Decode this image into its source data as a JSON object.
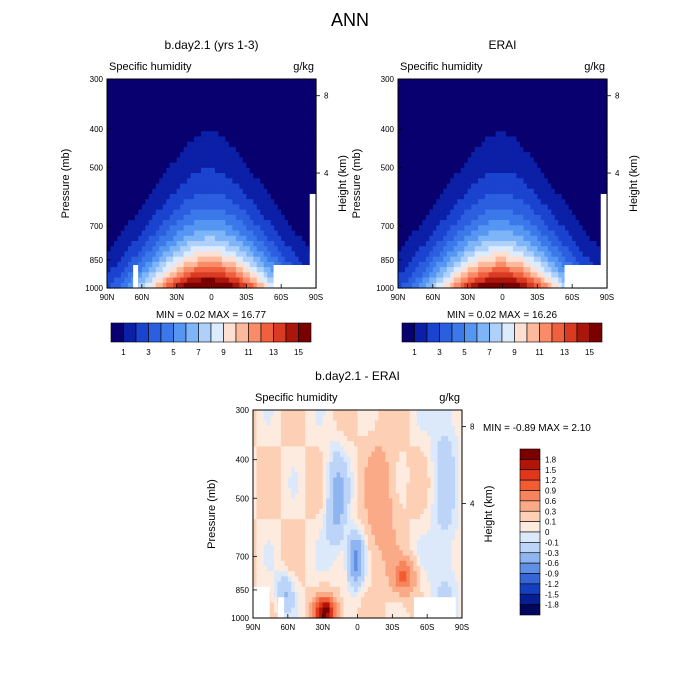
{
  "main_title": "ANN",
  "colorbar_labels_abs": [
    "1",
    "3",
    "5",
    "7",
    "9",
    "11",
    "13",
    "15"
  ],
  "colorbar_labels_diff": [
    "1.8",
    "1.5",
    "1.2",
    "0.9",
    "0.6",
    "0.3",
    "0.1",
    "0",
    "-0.1",
    "-0.3",
    "-0.6",
    "-0.9",
    "-1.2",
    "-1.5",
    "-1.8"
  ],
  "colors": {
    "abs_scale": [
      "#08006f",
      "#0b1fa7",
      "#1a43cf",
      "#2c5ee0",
      "#3b78ea",
      "#5596f3",
      "#7eb4f8",
      "#aed0fa",
      "#ddecfc",
      "#fde0d2",
      "#fcb99b",
      "#f98b68",
      "#f0603e",
      "#d83a22",
      "#a9160c",
      "#7a0000"
    ],
    "diff_scale": [
      "#7a0000",
      "#b01508",
      "#e0371a",
      "#f25c33",
      "#f7845c",
      "#fbaa87",
      "#fdd0b5",
      "#fdebdf",
      "#dce9fb",
      "#bcd4f7",
      "#8fb5f1",
      "#5f8fe6",
      "#3466d8",
      "#143fbf",
      "#081f94",
      "#02075e"
    ]
  },
  "chart_data": [
    {
      "type": "contour",
      "title": "b.day2.1 (yrs 1-3)",
      "variable": "Specific humidity",
      "units": "g/kg",
      "ylabel": "Pressure (mb)",
      "ylabel_right": "Height (km)",
      "x_ticks": [
        "90N",
        "60N",
        "30N",
        "0",
        "30S",
        "60S",
        "90S"
      ],
      "y_ticks": [
        "300",
        "400",
        "500",
        "700",
        "850",
        "1000"
      ],
      "y_ticks_right": [
        "8",
        "4"
      ],
      "min_label": "MIN =   0.02  MAX =  16.77",
      "min": 0.02,
      "max": 16.77,
      "levels": [
        1,
        2,
        3,
        4,
        5,
        6,
        7,
        8,
        9,
        10,
        11,
        12,
        13,
        14,
        15
      ]
    },
    {
      "type": "contour",
      "title": "ERAI",
      "variable": "Specific humidity",
      "units": "g/kg",
      "ylabel": "Pressure (mb)",
      "ylabel_right": "Height (km)",
      "x_ticks": [
        "90N",
        "60N",
        "30N",
        "0",
        "30S",
        "60S",
        "90S"
      ],
      "y_ticks": [
        "300",
        "400",
        "500",
        "700",
        "850",
        "1000"
      ],
      "y_ticks_right": [
        "8",
        "4"
      ],
      "min_label": "MIN =   0.02  MAX =  16.26",
      "min": 0.02,
      "max": 16.26,
      "levels": [
        1,
        2,
        3,
        4,
        5,
        6,
        7,
        8,
        9,
        10,
        11,
        12,
        13,
        14,
        15
      ]
    },
    {
      "type": "contour",
      "title": "b.day2.1 - ERAI",
      "variable": "Specific humidity",
      "units": "g/kg",
      "ylabel": "Pressure (mb)",
      "ylabel_right": "Height (km)",
      "x_ticks": [
        "90N",
        "60N",
        "30N",
        "0",
        "30S",
        "60S",
        "90S"
      ],
      "y_ticks": [
        "300",
        "400",
        "500",
        "700",
        "850",
        "1000"
      ],
      "y_ticks_right": [
        "8",
        "4"
      ],
      "min_label": "MIN = -0.89  MAX =   2.10",
      "min": -0.89,
      "max": 2.1,
      "levels": [
        -1.8,
        -1.5,
        -1.2,
        -0.9,
        -0.6,
        -0.3,
        -0.1,
        0,
        0.1,
        0.3,
        0.6,
        0.9,
        1.2,
        1.5,
        1.8
      ]
    }
  ]
}
